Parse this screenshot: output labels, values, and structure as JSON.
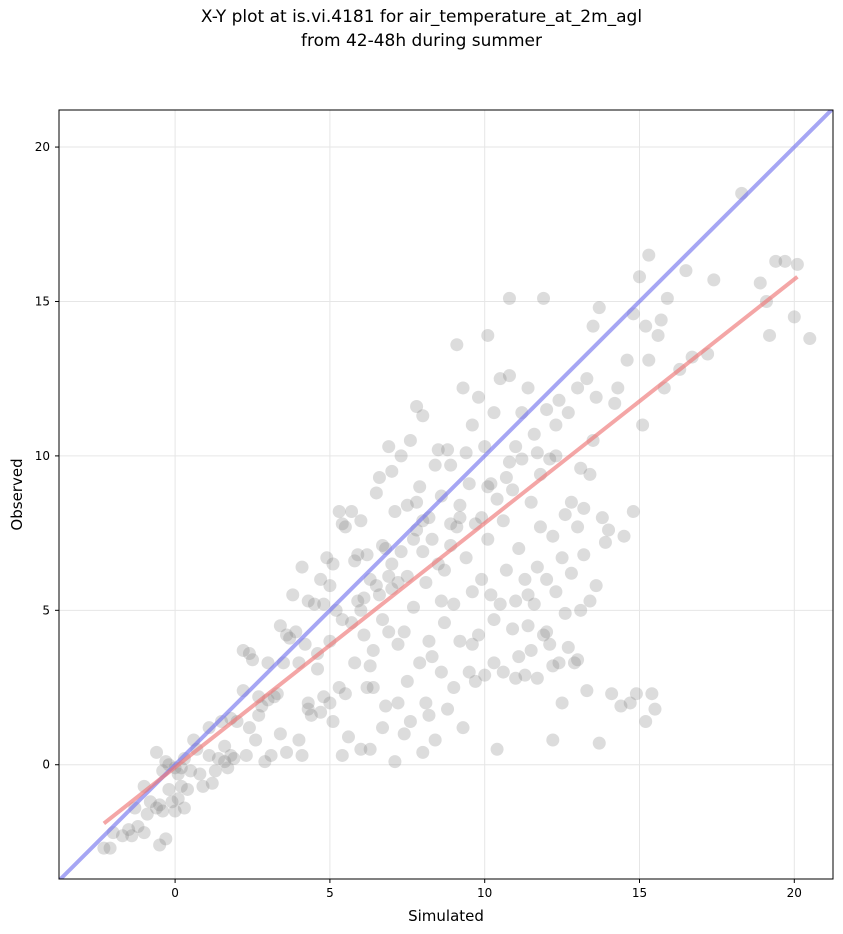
{
  "chart_data": {
    "type": "scatter",
    "title_line1": "X-Y plot at is.vi.4181 for air_temperature_at_2m_agl",
    "title_line2": "from 42-48h during summer",
    "xlabel": "Simulated",
    "ylabel": "Observed",
    "xlim": [
      -3.75,
      21.25
    ],
    "ylim": [
      -3.7,
      21.2
    ],
    "xticks": [
      0,
      5,
      10,
      15,
      20
    ],
    "yticks": [
      0,
      5,
      10,
      15,
      20
    ],
    "grid": true,
    "colors": {
      "points": "#808080",
      "identity_line": "#7777ee",
      "regression_line": "#ee7777"
    },
    "lines": [
      {
        "role": "identity",
        "x": [
          -3.75,
          21.25
        ],
        "y": [
          -3.75,
          21.25
        ]
      },
      {
        "role": "regression",
        "x": [
          -2.3,
          20.1
        ],
        "y": [
          -1.9,
          15.8
        ]
      }
    ],
    "points": [
      [
        -2.3,
        -2.7
      ],
      [
        -2.1,
        -2.7
      ],
      [
        -2.0,
        -2.2
      ],
      [
        -1.7,
        -2.3
      ],
      [
        -1.5,
        -2.1
      ],
      [
        -1.4,
        -2.3
      ],
      [
        -1.2,
        -2.0
      ],
      [
        -1.0,
        -2.2
      ],
      [
        -0.9,
        -1.6
      ],
      [
        -0.8,
        -1.2
      ],
      [
        -0.6,
        -1.4
      ],
      [
        -0.5,
        -2.6
      ],
      [
        -0.4,
        -1.5
      ],
      [
        -0.3,
        -2.4
      ],
      [
        -0.2,
        -0.8
      ],
      [
        -0.1,
        -1.2
      ],
      [
        0.0,
        -1.5
      ],
      [
        0.1,
        -1.1
      ],
      [
        0.2,
        -0.7
      ],
      [
        0.3,
        -1.4
      ],
      [
        -1.3,
        -1.4
      ],
      [
        -1.0,
        -0.7
      ],
      [
        -0.5,
        -1.3
      ],
      [
        -0.4,
        -0.2
      ],
      [
        -0.3,
        0.1
      ],
      [
        -0.2,
        0.0
      ],
      [
        0.0,
        -0.1
      ],
      [
        0.1,
        -0.3
      ],
      [
        0.2,
        -0.1
      ],
      [
        0.4,
        -0.8
      ],
      [
        0.5,
        -0.2
      ],
      [
        -0.6,
        0.4
      ],
      [
        0.6,
        0.8
      ],
      [
        0.8,
        -0.3
      ],
      [
        0.9,
        -0.7
      ],
      [
        1.1,
        1.2
      ],
      [
        1.2,
        -0.6
      ],
      [
        1.3,
        -0.2
      ],
      [
        1.4,
        0.2
      ],
      [
        1.5,
        1.4
      ],
      [
        1.6,
        0.1
      ],
      [
        1.7,
        -0.1
      ],
      [
        1.8,
        0.3
      ],
      [
        1.9,
        0.2
      ],
      [
        2.0,
        1.4
      ],
      [
        2.2,
        2.4
      ],
      [
        2.3,
        0.3
      ],
      [
        2.2,
        3.7
      ],
      [
        2.4,
        3.6
      ],
      [
        2.5,
        3.4
      ],
      [
        2.6,
        0.8
      ],
      [
        2.7,
        1.6
      ],
      [
        2.8,
        1.9
      ],
      [
        2.9,
        0.1
      ],
      [
        3.0,
        3.3
      ],
      [
        3.1,
        0.3
      ],
      [
        3.2,
        2.2
      ],
      [
        3.3,
        2.3
      ],
      [
        3.4,
        4.5
      ],
      [
        3.4,
        1.0
      ],
      [
        3.5,
        3.3
      ],
      [
        3.6,
        0.4
      ],
      [
        3.7,
        4.1
      ],
      [
        3.8,
        5.5
      ],
      [
        3.9,
        4.3
      ],
      [
        4.0,
        0.8
      ],
      [
        4.0,
        3.3
      ],
      [
        4.1,
        6.4
      ],
      [
        4.1,
        0.3
      ],
      [
        4.2,
        3.9
      ],
      [
        4.3,
        2.0
      ],
      [
        4.3,
        1.8
      ],
      [
        4.3,
        5.3
      ],
      [
        4.4,
        1.6
      ],
      [
        4.5,
        5.2
      ],
      [
        4.6,
        3.6
      ],
      [
        4.7,
        1.7
      ],
      [
        4.7,
        6.0
      ],
      [
        4.8,
        2.2
      ],
      [
        4.9,
        6.7
      ],
      [
        5.0,
        5.8
      ],
      [
        5.0,
        2.0
      ],
      [
        5.1,
        6.5
      ],
      [
        5.1,
        1.4
      ],
      [
        5.2,
        5.0
      ],
      [
        5.3,
        2.5
      ],
      [
        5.3,
        8.2
      ],
      [
        5.4,
        7.8
      ],
      [
        5.4,
        0.3
      ],
      [
        5.5,
        2.3
      ],
      [
        5.5,
        7.7
      ],
      [
        5.6,
        0.9
      ],
      [
        5.7,
        4.6
      ],
      [
        5.7,
        8.2
      ],
      [
        5.8,
        3.3
      ],
      [
        5.8,
        6.6
      ],
      [
        5.9,
        5.3
      ],
      [
        6.0,
        7.9
      ],
      [
        6.0,
        0.5
      ],
      [
        6.1,
        5.4
      ],
      [
        6.1,
        4.2
      ],
      [
        6.2,
        2.5
      ],
      [
        6.2,
        6.8
      ],
      [
        6.3,
        3.2
      ],
      [
        6.3,
        6.0
      ],
      [
        6.3,
        0.5
      ],
      [
        6.4,
        2.5
      ],
      [
        6.5,
        5.8
      ],
      [
        6.5,
        8.8
      ],
      [
        6.6,
        9.3
      ],
      [
        6.6,
        5.5
      ],
      [
        6.7,
        1.2
      ],
      [
        6.7,
        4.7
      ],
      [
        6.8,
        7.0
      ],
      [
        6.8,
        1.9
      ],
      [
        6.9,
        10.3
      ],
      [
        6.9,
        6.1
      ],
      [
        7.0,
        9.5
      ],
      [
        7.0,
        5.7
      ],
      [
        7.1,
        0.1
      ],
      [
        7.1,
        8.2
      ],
      [
        7.2,
        3.9
      ],
      [
        7.2,
        5.9
      ],
      [
        7.3,
        10.0
      ],
      [
        7.3,
        6.9
      ],
      [
        7.4,
        1.0
      ],
      [
        7.4,
        4.3
      ],
      [
        7.5,
        8.4
      ],
      [
        7.5,
        2.7
      ],
      [
        7.5,
        6.1
      ],
      [
        7.6,
        10.5
      ],
      [
        7.6,
        1.4
      ],
      [
        7.7,
        7.3
      ],
      [
        7.7,
        5.1
      ],
      [
        7.8,
        11.6
      ],
      [
        7.8,
        8.5
      ],
      [
        7.9,
        3.3
      ],
      [
        7.9,
        9.0
      ],
      [
        8.0,
        6.9
      ],
      [
        8.0,
        0.4
      ],
      [
        8.0,
        11.3
      ],
      [
        8.1,
        2.0
      ],
      [
        8.1,
        5.9
      ],
      [
        8.2,
        8.0
      ],
      [
        8.2,
        1.6
      ],
      [
        8.3,
        7.3
      ],
      [
        8.3,
        3.5
      ],
      [
        8.4,
        9.7
      ],
      [
        8.4,
        0.8
      ],
      [
        8.5,
        6.5
      ],
      [
        8.5,
        10.2
      ],
      [
        8.6,
        8.7
      ],
      [
        8.6,
        3.0
      ],
      [
        8.7,
        4.6
      ],
      [
        8.7,
        6.3
      ],
      [
        8.8,
        10.2
      ],
      [
        8.8,
        1.8
      ],
      [
        8.9,
        7.1
      ],
      [
        8.9,
        9.7
      ],
      [
        9.0,
        5.2
      ],
      [
        9.0,
        2.5
      ],
      [
        9.1,
        7.7
      ],
      [
        9.1,
        13.6
      ],
      [
        9.2,
        4.0
      ],
      [
        9.2,
        8.4
      ],
      [
        9.3,
        12.2
      ],
      [
        9.3,
        1.2
      ],
      [
        9.4,
        6.7
      ],
      [
        9.4,
        10.1
      ],
      [
        9.5,
        3.0
      ],
      [
        9.5,
        9.1
      ],
      [
        9.6,
        5.6
      ],
      [
        9.6,
        11.0
      ],
      [
        9.7,
        7.8
      ],
      [
        9.7,
        2.7
      ],
      [
        9.8,
        11.9
      ],
      [
        9.8,
        4.2
      ],
      [
        9.9,
        8.0
      ],
      [
        9.9,
        6.0
      ],
      [
        10.0,
        10.3
      ],
      [
        10.0,
        2.9
      ],
      [
        10.1,
        7.3
      ],
      [
        10.1,
        13.9
      ],
      [
        10.2,
        9.1
      ],
      [
        10.2,
        5.5
      ],
      [
        10.3,
        4.7
      ],
      [
        10.3,
        11.4
      ],
      [
        10.4,
        8.6
      ],
      [
        10.4,
        0.5
      ],
      [
        10.5,
        12.5
      ],
      [
        10.5,
        5.2
      ],
      [
        10.6,
        7.9
      ],
      [
        10.6,
        3.0
      ],
      [
        10.7,
        9.3
      ],
      [
        10.7,
        6.3
      ],
      [
        10.8,
        15.1
      ],
      [
        10.8,
        12.6
      ],
      [
        10.9,
        4.4
      ],
      [
        10.9,
        8.9
      ],
      [
        11.0,
        5.3
      ],
      [
        11.0,
        10.3
      ],
      [
        11.1,
        3.5
      ],
      [
        11.1,
        7.0
      ],
      [
        11.2,
        11.4
      ],
      [
        11.2,
        9.9
      ],
      [
        11.3,
        2.9
      ],
      [
        11.3,
        6.0
      ],
      [
        11.4,
        12.2
      ],
      [
        11.4,
        4.5
      ],
      [
        11.5,
        8.5
      ],
      [
        11.5,
        3.7
      ],
      [
        11.6,
        10.7
      ],
      [
        11.6,
        5.2
      ],
      [
        11.7,
        6.4
      ],
      [
        11.7,
        2.8
      ],
      [
        11.8,
        9.4
      ],
      [
        11.8,
        7.7
      ],
      [
        11.9,
        15.1
      ],
      [
        11.9,
        4.2
      ],
      [
        12.0,
        11.5
      ],
      [
        12.0,
        6.0
      ],
      [
        12.1,
        3.9
      ],
      [
        12.1,
        9.9
      ],
      [
        12.2,
        0.8
      ],
      [
        12.2,
        7.4
      ],
      [
        12.3,
        5.6
      ],
      [
        12.3,
        10.0
      ],
      [
        12.4,
        3.3
      ],
      [
        12.4,
        11.8
      ],
      [
        12.5,
        6.7
      ],
      [
        12.5,
        2.0
      ],
      [
        12.6,
        8.1
      ],
      [
        12.6,
        4.9
      ],
      [
        12.7,
        11.4
      ],
      [
        12.7,
        3.8
      ],
      [
        12.8,
        6.2
      ],
      [
        12.8,
        8.5
      ],
      [
        12.9,
        3.3
      ],
      [
        13.0,
        7.7
      ],
      [
        13.0,
        12.2
      ],
      [
        13.1,
        5.0
      ],
      [
        13.1,
        9.6
      ],
      [
        13.2,
        8.3
      ],
      [
        13.2,
        6.8
      ],
      [
        13.3,
        12.5
      ],
      [
        13.3,
        2.4
      ],
      [
        13.4,
        9.4
      ],
      [
        13.4,
        5.3
      ],
      [
        13.5,
        14.2
      ],
      [
        13.5,
        10.5
      ],
      [
        13.6,
        11.9
      ],
      [
        13.6,
        5.8
      ],
      [
        13.7,
        14.8
      ],
      [
        13.7,
        0.7
      ],
      [
        13.8,
        8.0
      ],
      [
        13.9,
        7.2
      ],
      [
        14.0,
        7.6
      ],
      [
        14.1,
        2.3
      ],
      [
        14.2,
        11.7
      ],
      [
        14.3,
        12.2
      ],
      [
        14.4,
        1.9
      ],
      [
        14.5,
        7.4
      ],
      [
        14.6,
        13.1
      ],
      [
        14.7,
        2.0
      ],
      [
        14.8,
        14.6
      ],
      [
        14.8,
        8.2
      ],
      [
        14.9,
        2.3
      ],
      [
        15.0,
        15.8
      ],
      [
        15.1,
        11.0
      ],
      [
        15.2,
        1.4
      ],
      [
        15.2,
        14.2
      ],
      [
        15.3,
        13.1
      ],
      [
        15.3,
        16.5
      ],
      [
        15.4,
        2.3
      ],
      [
        15.5,
        1.8
      ],
      [
        15.6,
        13.9
      ],
      [
        15.7,
        14.4
      ],
      [
        15.8,
        12.2
      ],
      [
        15.9,
        15.1
      ],
      [
        16.3,
        12.8
      ],
      [
        16.5,
        16.0
      ],
      [
        16.7,
        13.2
      ],
      [
        17.2,
        13.3
      ],
      [
        17.4,
        15.7
      ],
      [
        18.3,
        18.5
      ],
      [
        18.9,
        15.6
      ],
      [
        19.1,
        15.0
      ],
      [
        19.2,
        13.9
      ],
      [
        19.4,
        16.3
      ],
      [
        19.7,
        16.3
      ],
      [
        20.0,
        14.5
      ],
      [
        20.1,
        16.2
      ],
      [
        20.5,
        13.8
      ],
      [
        4.6,
        3.1
      ],
      [
        5.4,
        4.7
      ],
      [
        6.4,
        3.7
      ],
      [
        6.9,
        4.3
      ],
      [
        7.2,
        2.0
      ],
      [
        8.2,
        4.0
      ],
      [
        8.6,
        5.3
      ],
      [
        9.6,
        3.9
      ],
      [
        10.3,
        3.3
      ],
      [
        11.0,
        2.8
      ],
      [
        11.4,
        5.5
      ],
      [
        12.0,
        4.3
      ],
      [
        12.2,
        3.2
      ],
      [
        13.0,
        3.4
      ],
      [
        3.0,
        2.1
      ],
      [
        2.7,
        2.2
      ],
      [
        1.6,
        0.6
      ],
      [
        1.1,
        0.3
      ],
      [
        0.7,
        0.5
      ],
      [
        0.3,
        0.2
      ],
      [
        2.4,
        1.2
      ],
      [
        1.8,
        1.5
      ],
      [
        3.6,
        4.2
      ],
      [
        4.8,
        5.2
      ],
      [
        5.9,
        6.8
      ],
      [
        6.7,
        7.1
      ],
      [
        7.8,
        7.6
      ],
      [
        8.9,
        7.8
      ],
      [
        9.2,
        8.0
      ],
      [
        10.1,
        9.0
      ],
      [
        10.8,
        9.8
      ],
      [
        11.7,
        10.1
      ],
      [
        12.3,
        11.0
      ],
      [
        5.0,
        4.0
      ],
      [
        6.0,
        5.0
      ],
      [
        7.0,
        6.5
      ],
      [
        8.0,
        7.9
      ]
    ]
  }
}
